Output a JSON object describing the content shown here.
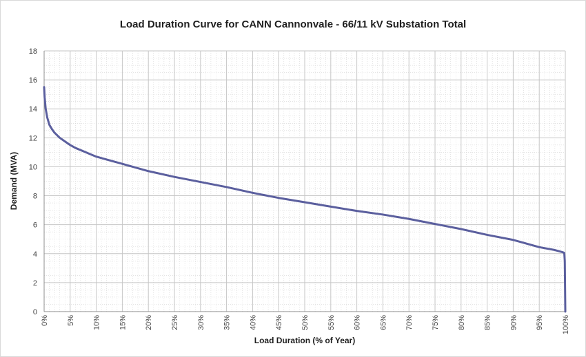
{
  "chart_data": {
    "type": "line",
    "title": "Load Duration Curve for CANN Cannonvale - 66/11 kV Substation Total",
    "xlabel": "Load Duration (% of Year)",
    "ylabel": "Demand (MVA)",
    "xlim": [
      0,
      100
    ],
    "ylim": [
      0,
      18
    ],
    "x_ticks": [
      "0%",
      "5%",
      "10%",
      "15%",
      "20%",
      "25%",
      "30%",
      "35%",
      "40%",
      "45%",
      "50%",
      "55%",
      "60%",
      "65%",
      "70%",
      "75%",
      "80%",
      "85%",
      "90%",
      "95%",
      "100%"
    ],
    "y_ticks": [
      "0",
      "2",
      "4",
      "6",
      "8",
      "10",
      "12",
      "14",
      "16",
      "18"
    ],
    "grid": true,
    "minor_grid": true,
    "legend": "none",
    "line_color": "#5b5f9e",
    "series": [
      {
        "x": [
          0,
          0.1,
          0.3,
          0.6,
          1,
          1.5,
          2,
          3,
          4,
          5,
          6,
          8,
          10,
          12,
          15,
          20,
          25,
          30,
          35,
          40,
          45,
          50,
          55,
          60,
          65,
          70,
          75,
          80,
          85,
          90,
          95,
          98,
          99.5,
          99.8,
          99.9,
          100
        ],
        "y": [
          15.5,
          14.8,
          14.0,
          13.4,
          12.9,
          12.6,
          12.35,
          12.0,
          11.75,
          11.5,
          11.3,
          11.0,
          10.7,
          10.5,
          10.2,
          9.7,
          9.3,
          8.95,
          8.6,
          8.2,
          7.85,
          7.55,
          7.25,
          6.95,
          6.7,
          6.4,
          6.05,
          5.7,
          5.3,
          4.95,
          4.45,
          4.25,
          4.1,
          4.05,
          3.5,
          0
        ]
      }
    ]
  }
}
